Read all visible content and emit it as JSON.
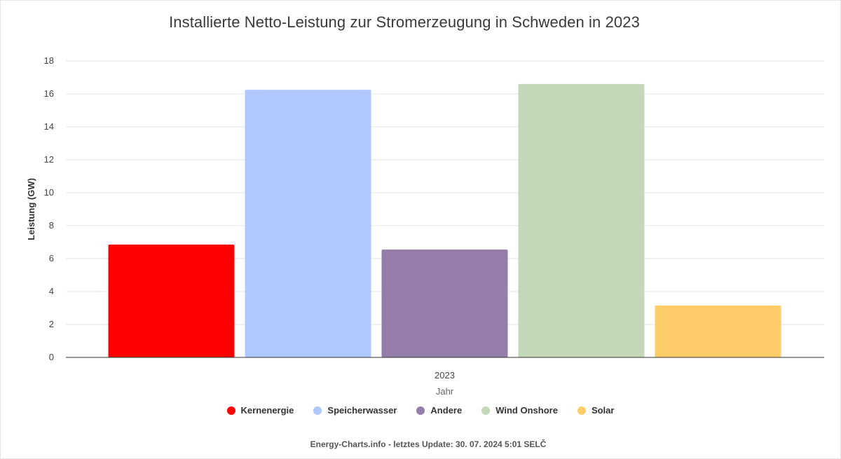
{
  "chart_data": {
    "type": "bar",
    "title": "Installierte Netto-Leistung zur Stromerzeugung in Schweden in 2023",
    "xlabel": "Jahr",
    "ylabel": "Leistung (GW)",
    "categories": [
      "2023"
    ],
    "ylim": [
      0,
      18
    ],
    "yticks": [
      0,
      2,
      4,
      6,
      8,
      10,
      12,
      14,
      16,
      18
    ],
    "grid": true,
    "legend_placement": "bottom",
    "series": [
      {
        "name": "Kernenergie",
        "values": [
          6.85
        ],
        "color": "#ff0000"
      },
      {
        "name": "Speicherwasser",
        "values": [
          16.25
        ],
        "color": "#afc8fd"
      },
      {
        "name": "Andere",
        "values": [
          6.55
        ],
        "color": "#957dab"
      },
      {
        "name": "Wind Onshore",
        "values": [
          16.6
        ],
        "color": "#c3d8b9"
      },
      {
        "name": "Solar",
        "values": [
          3.15
        ],
        "color": "#fecc69"
      }
    ]
  },
  "footer": {
    "credit": "Energy-Charts.info - letztes Update: 30. 07. 2024 5:01 SELČ"
  }
}
